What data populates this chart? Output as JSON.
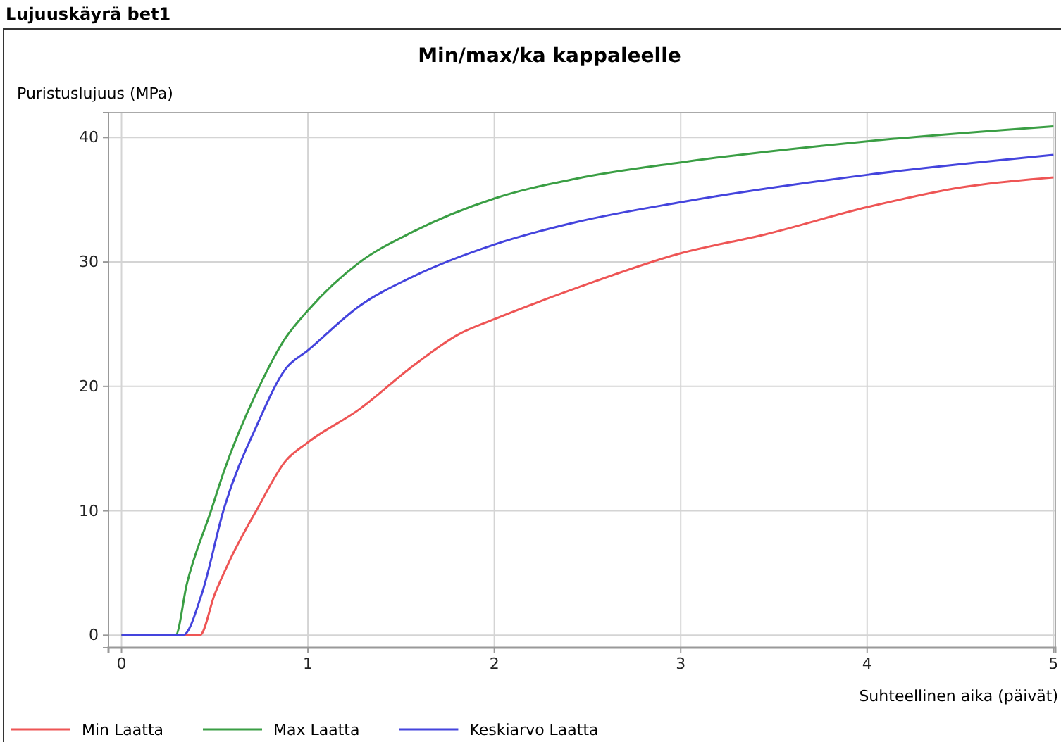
{
  "chart_data": {
    "type": "line",
    "title": "Min/max/ka kappaleelle",
    "subtitle": "Lujuuskäyrä bet1",
    "xlabel": "Suhteellinen aika (päivät)",
    "ylabel": "Puristuslujuus (MPa)",
    "xlim": [
      -0.07,
      5.01
    ],
    "ylim": [
      -1,
      42
    ],
    "xticks": [
      0,
      1,
      2,
      3,
      4,
      5
    ],
    "yticks": [
      0,
      10,
      20,
      30,
      40
    ],
    "grid": true,
    "legend": "bottom left",
    "marker": "none",
    "line_style": "solid",
    "series": [
      {
        "name": "Min Laatta",
        "color": "#ee5555",
        "x": [
          0,
          0.42,
          0.5,
          0.58,
          0.73,
          0.88,
          1.0,
          1.28,
          1.56,
          1.81,
          2.0,
          2.44,
          3.0,
          3.45,
          4.0,
          4.51,
          5.0
        ],
        "values": [
          0,
          0,
          3.3,
          6,
          10.2,
          14,
          15.5,
          18.2,
          21.6,
          24.2,
          25.4,
          27.9,
          30.7,
          32.2,
          34.4,
          36,
          36.8
        ]
      },
      {
        "name": "Max Laatta",
        "color": "#3a9e44",
        "x": [
          0,
          0.29,
          0.35,
          0.48,
          0.55,
          0.73,
          0.88,
          1.0,
          1.28,
          1.56,
          2.0,
          2.44,
          3.0,
          4.0,
          5.0
        ],
        "values": [
          0,
          0,
          4.1,
          10,
          13.2,
          19.7,
          23.9,
          26.1,
          30,
          32.4,
          35.1,
          36.7,
          38,
          39.7,
          40.9
        ]
      },
      {
        "name": "Keskiarvo Laatta",
        "color": "#4444dd",
        "x": [
          0,
          0.33,
          0.43,
          0.55,
          0.73,
          0.88,
          1.0,
          1.28,
          1.56,
          2.0,
          2.44,
          3.0,
          4.0,
          5.0
        ],
        "values": [
          0,
          0,
          3.3,
          10.2,
          17,
          21.4,
          22.9,
          26.5,
          28.8,
          31.4,
          33.2,
          34.8,
          37,
          38.6
        ]
      }
    ]
  }
}
